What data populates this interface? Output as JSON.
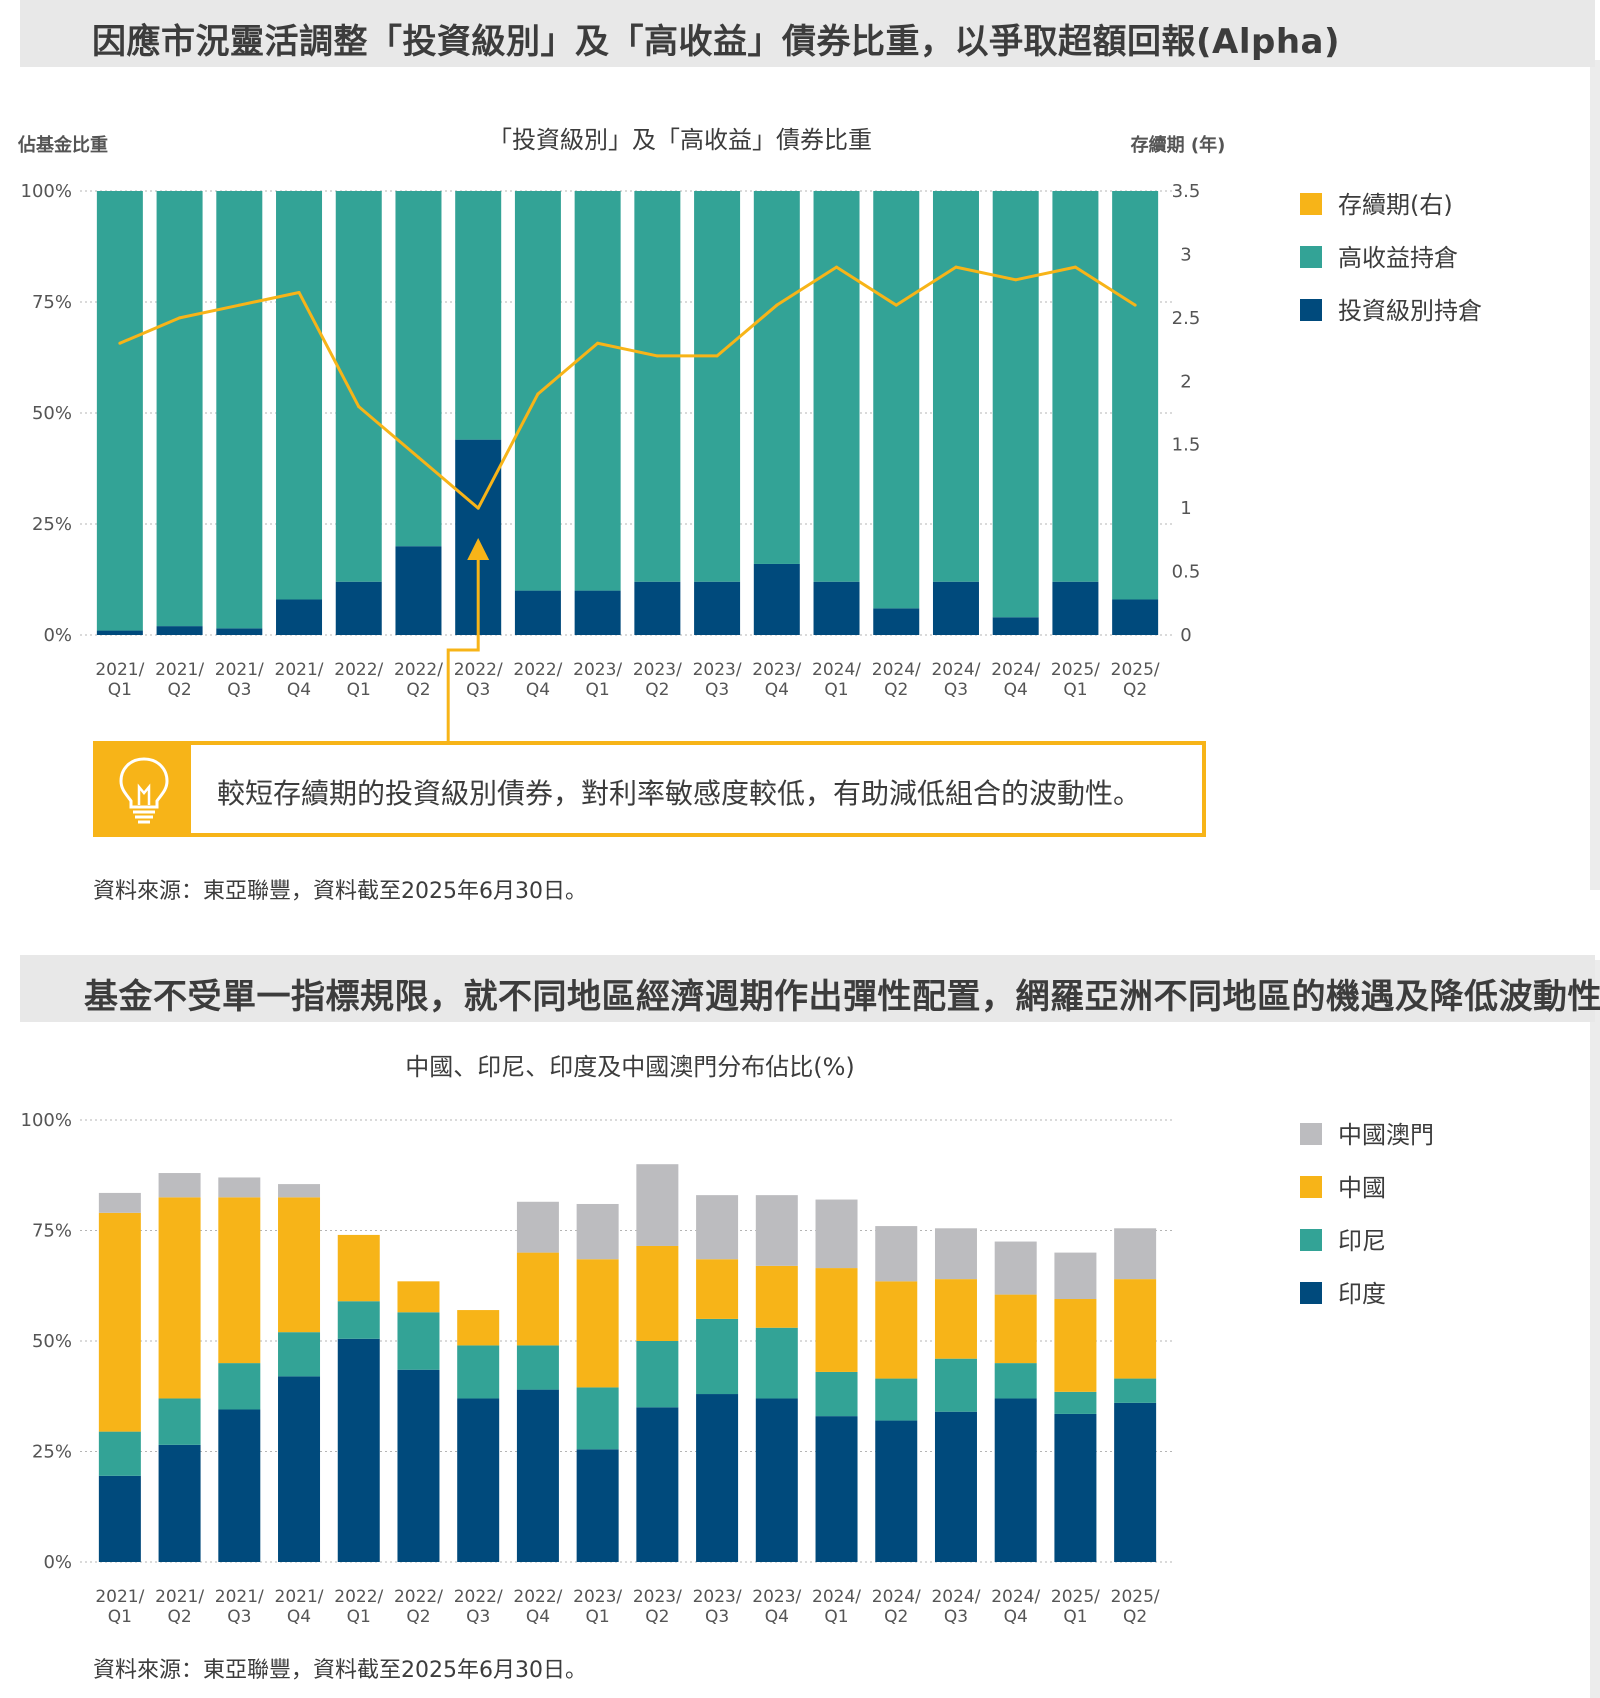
{
  "colors": {
    "investment_grade": "#004a7c",
    "high_yield": "#33a396",
    "duration": "#f7b418",
    "india": "#004a7c",
    "indonesia": "#33a396",
    "china": "#f7b418",
    "china_macau": "#bcbcbf",
    "banner_bg": "#e8e8e8"
  },
  "section1": {
    "banner": "因應市況靈活調整「投資級別」及「高收益」債券比重，以爭取超額回報(Alpha)",
    "source": "資料來源：東亞聯豐，資料截至2025年6月30日。",
    "callout": {
      "icon": "lightbulb-icon",
      "text": "較短存續期的投資級別債券，對利率敏感度較低，有助減低組合的波動性。"
    }
  },
  "section2": {
    "banner": "基金不受單一指標規限，就不同地區經濟週期作出彈性配置，網羅亞洲不同地區的機遇及降低波動性",
    "source": "資料來源：東亞聯豐，資料截至2025年6月30日。"
  },
  "chart_data": [
    {
      "type": "bar",
      "stacked": true,
      "title": "「投資級別」及「高收益」債券比重",
      "ylabel": "佔基金比重",
      "y2label": "存續期 (年)",
      "ylim": [
        0,
        100
      ],
      "y2lim": [
        0,
        3.5
      ],
      "yticks": [
        "100%",
        "75%",
        "50%",
        "25%",
        "0%"
      ],
      "y2ticks": [
        "3.5",
        "3",
        "2.5",
        "2",
        "1.5",
        "1",
        "0.5",
        "0"
      ],
      "grid": true,
      "legend_position": "right",
      "categories": [
        [
          "2021/",
          "Q1"
        ],
        [
          "2021/",
          "Q2"
        ],
        [
          "2021/",
          "Q3"
        ],
        [
          "2021/",
          "Q4"
        ],
        [
          "2022/",
          "Q1"
        ],
        [
          "2022/",
          "Q2"
        ],
        [
          "2022/",
          "Q3"
        ],
        [
          "2022/",
          "Q4"
        ],
        [
          "2023/",
          "Q1"
        ],
        [
          "2023/",
          "Q2"
        ],
        [
          "2023/",
          "Q3"
        ],
        [
          "2023/",
          "Q4"
        ],
        [
          "2024/",
          "Q1"
        ],
        [
          "2024/",
          "Q2"
        ],
        [
          "2024/",
          "Q3"
        ],
        [
          "2024/",
          "Q4"
        ],
        [
          "2025/",
          "Q1"
        ],
        [
          "2025/",
          "Q2"
        ]
      ],
      "series": [
        {
          "name": "投資級別持倉",
          "axis": "left",
          "values": [
            1,
            2,
            1.5,
            8,
            12,
            20,
            44,
            10,
            10,
            12,
            12,
            16,
            12,
            6,
            12,
            4,
            12,
            8
          ]
        },
        {
          "name": "高收益持倉",
          "axis": "left",
          "values": [
            99,
            98,
            98.5,
            92,
            88,
            80,
            56,
            90,
            90,
            88,
            88,
            84,
            88,
            94,
            88,
            96,
            88,
            92
          ]
        },
        {
          "name": "存續期(右)",
          "axis": "right",
          "line": true,
          "values": [
            2.3,
            2.5,
            2.6,
            2.7,
            1.8,
            1.4,
            1.0,
            1.9,
            2.3,
            2.2,
            2.2,
            2.6,
            2.9,
            2.6,
            2.9,
            2.8,
            2.9,
            2.6
          ]
        }
      ],
      "legend": [
        "存續期(右)",
        "高收益持倉",
        "投資級別持倉"
      ]
    },
    {
      "type": "bar",
      "stacked": true,
      "title": "中國、印尼、印度及中國澳門分布佔比(%)",
      "ylim": [
        0,
        100
      ],
      "yticks": [
        "100%",
        "75%",
        "50%",
        "25%",
        "0%"
      ],
      "grid": true,
      "legend_position": "right",
      "categories": [
        [
          "2021/",
          "Q1"
        ],
        [
          "2021/",
          "Q2"
        ],
        [
          "2021/",
          "Q3"
        ],
        [
          "2021/",
          "Q4"
        ],
        [
          "2022/",
          "Q1"
        ],
        [
          "2022/",
          "Q2"
        ],
        [
          "2022/",
          "Q3"
        ],
        [
          "2022/",
          "Q4"
        ],
        [
          "2023/",
          "Q1"
        ],
        [
          "2023/",
          "Q2"
        ],
        [
          "2023/",
          "Q3"
        ],
        [
          "2023/",
          "Q4"
        ],
        [
          "2024/",
          "Q1"
        ],
        [
          "2024/",
          "Q2"
        ],
        [
          "2024/",
          "Q3"
        ],
        [
          "2024/",
          "Q4"
        ],
        [
          "2025/",
          "Q1"
        ],
        [
          "2025/",
          "Q2"
        ]
      ],
      "series": [
        {
          "name": "印度",
          "values": [
            19.5,
            26.5,
            34.5,
            42,
            50.5,
            43.5,
            37,
            39,
            25.5,
            35,
            38,
            37,
            33,
            32,
            34,
            37,
            33.5,
            36
          ]
        },
        {
          "name": "印尼",
          "values": [
            10,
            10.5,
            10.5,
            10,
            8.5,
            13,
            12,
            10,
            14,
            15,
            17,
            16,
            10,
            9.5,
            12,
            8,
            5,
            5.5
          ]
        },
        {
          "name": "中國",
          "values": [
            49.5,
            45.5,
            37.5,
            30.5,
            15,
            7,
            8,
            21,
            29,
            21.5,
            13.5,
            14,
            23.5,
            22,
            18,
            15.5,
            21,
            22.5
          ]
        },
        {
          "name": "中國澳門",
          "values": [
            4.5,
            5.5,
            4.5,
            3,
            0,
            0,
            0,
            11.5,
            12.5,
            18.5,
            14.5,
            16,
            15.5,
            12.5,
            11.5,
            12,
            10.5,
            11.5
          ]
        }
      ],
      "legend": [
        "中國澳門",
        "中國",
        "印尼",
        "印度"
      ]
    }
  ]
}
